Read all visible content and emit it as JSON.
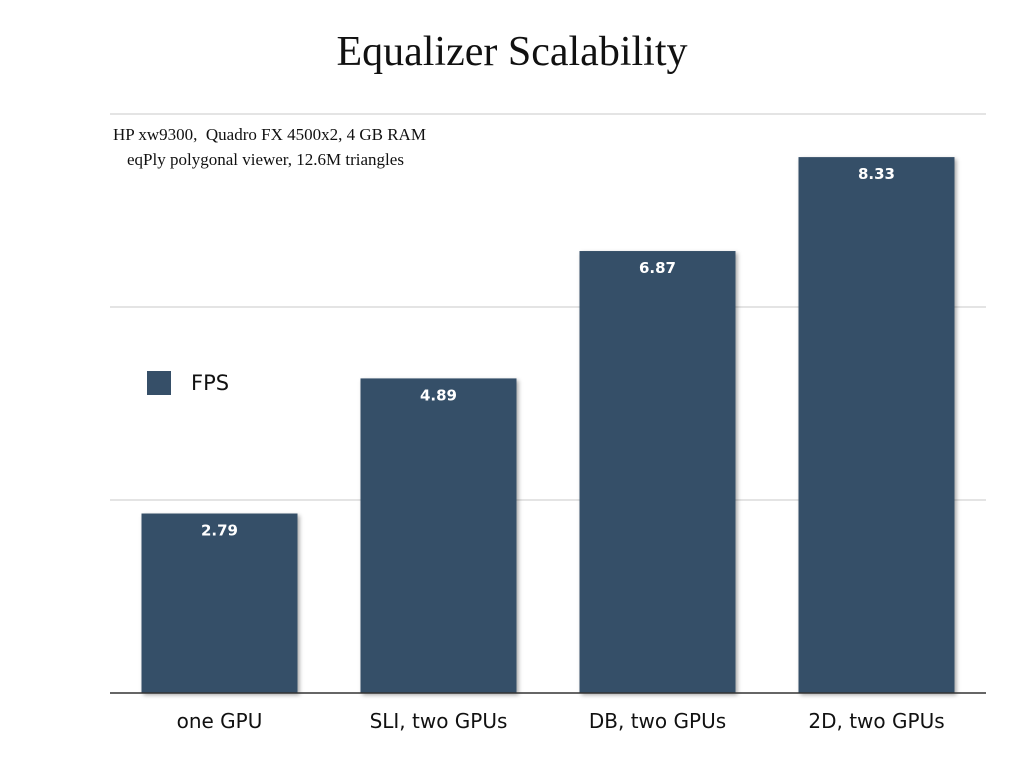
{
  "chart_data": {
    "type": "bar",
    "title": "Equalizer Scalability",
    "subtitle_lines": [
      "HP xw9300,  Quadro FX 4500x2, 4 GB RAM",
      "eqPly polygonal viewer, 12.6M triangles"
    ],
    "categories": [
      "one GPU",
      "SLI, two GPUs",
      "DB, two GPUs",
      "2D, two GPUs"
    ],
    "series": [
      {
        "name": "FPS",
        "values": [
          2.79,
          4.89,
          6.87,
          8.33
        ],
        "labels": [
          "2.79",
          "4.89",
          "6.87",
          "8.33"
        ]
      }
    ],
    "ylim": [
      0,
      9
    ],
    "y_gridlines": [
      3,
      6,
      9
    ],
    "y_ticks_shown": false,
    "grid": true,
    "legend": "left-middle",
    "colors": {
      "bar": "#364f68",
      "gridline": "#c8c8c8",
      "axis": "#333333"
    }
  }
}
